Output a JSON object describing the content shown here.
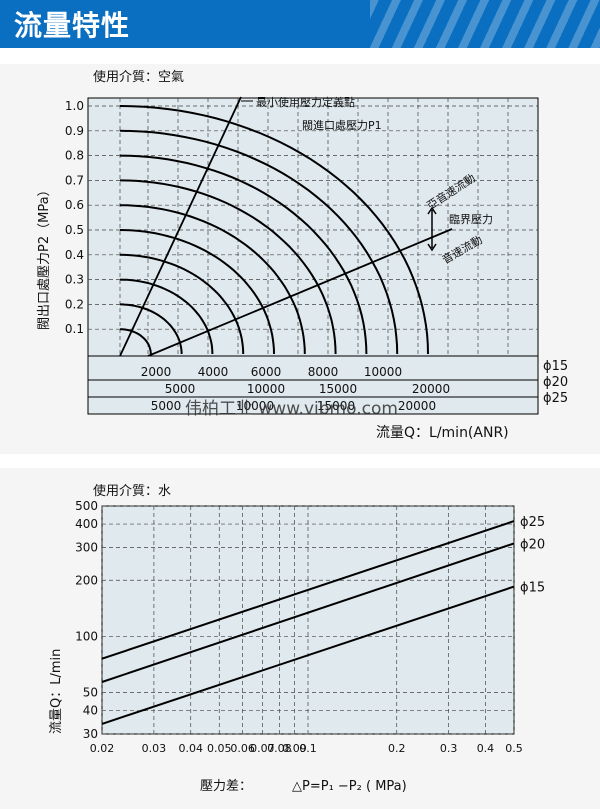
{
  "header": {
    "title": "流量特性",
    "accent": "#0b6fc1"
  },
  "watermark": "伟柏工业  www.vibmo.com",
  "chart_data": [
    {
      "type": "line",
      "medium_label": "使用介質：空氣",
      "ylabel": "閥出口處壓力P2（MPa）",
      "xlabel": "流量Q：L/min(ANR)",
      "ylim": [
        0,
        1.0
      ],
      "y_ticks": [
        "1.0",
        "0.9",
        "0.8",
        "0.7",
        "0.6",
        "0.5",
        "0.4",
        "0.3",
        "0.2",
        "0.1"
      ],
      "curve_label": "閥進口處壓力P1",
      "annotations": {
        "min_pressure": "最小使用壓力定義點",
        "critical": "臨界壓力",
        "subsonic": "亞音速流動",
        "sonic": "音速流動"
      },
      "inlet_pressures": [
        0.1,
        0.2,
        0.3,
        0.4,
        0.5,
        0.6,
        0.7,
        0.8,
        0.9,
        1.0
      ],
      "scales": [
        {
          "name": "ϕ15",
          "ticks": [
            "2000",
            "4000",
            "6000",
            "8000",
            "10000"
          ]
        },
        {
          "name": "ϕ20",
          "ticks": [
            "5000",
            "10000",
            "15000",
            "20000"
          ]
        },
        {
          "name": "ϕ25",
          "ticks": [
            "5000",
            "10000",
            "15000",
            "20000"
          ]
        }
      ],
      "grid": true
    },
    {
      "type": "line",
      "medium_label": "使用介質：水",
      "xscale": "log",
      "yscale": "log",
      "xlabel_prefix": "壓力差：",
      "xlabel_formula": "△P=P₁ −P₂ ( MPa)",
      "ylabel": "流量Q：L/min",
      "x_ticks": [
        "0.02",
        "0.03",
        "0.04",
        "0.05",
        "0.06",
        "0.07",
        "0.08",
        "0.09",
        "0.1",
        "0.2",
        "0.3",
        "0.4",
        "0.5"
      ],
      "y_ticks": [
        "500",
        "400",
        "300",
        "200",
        "100",
        "50",
        "40",
        "30"
      ],
      "xlim": [
        0.02,
        0.5
      ],
      "ylim": [
        30,
        500
      ],
      "series": [
        {
          "name": "ϕ25",
          "x": [
            0.02,
            0.5
          ],
          "y": [
            76,
            415
          ]
        },
        {
          "name": "ϕ20",
          "x": [
            0.02,
            0.5
          ],
          "y": [
            57,
            315
          ]
        },
        {
          "name": "ϕ15",
          "x": [
            0.02,
            0.5
          ],
          "y": [
            34,
            185
          ]
        }
      ],
      "grid": true
    }
  ]
}
